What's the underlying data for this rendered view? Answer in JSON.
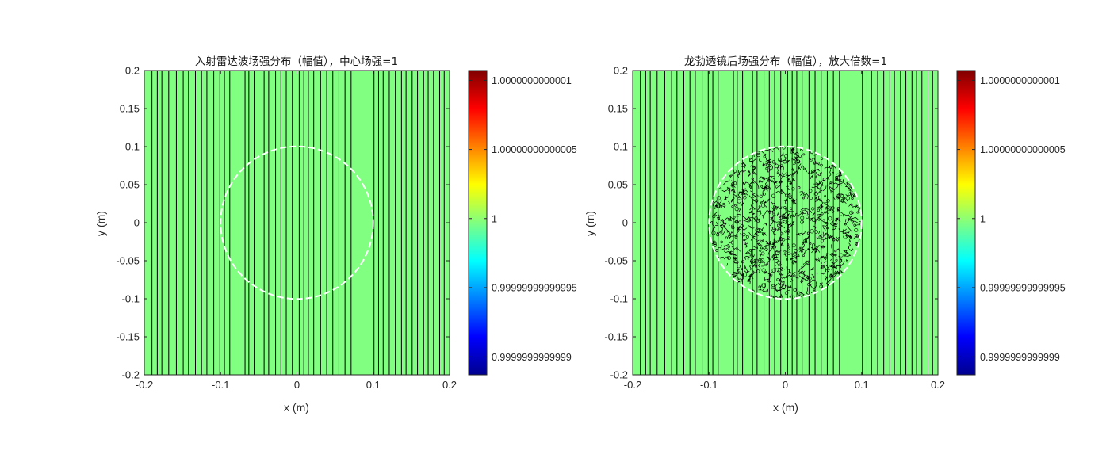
{
  "chart_data": [
    {
      "type": "heatmap",
      "title": "入射雷达波场强分布（幅值），中心场强=1",
      "xlabel": "x (m)",
      "ylabel": "y (m)",
      "xlim": [
        -0.2,
        0.2
      ],
      "ylim": [
        -0.2,
        0.2
      ],
      "xticks": [
        "-0.2",
        "-0.1",
        "0",
        "0.1",
        "0.2"
      ],
      "yticks": [
        "0.2",
        "0.15",
        "0.1",
        "0.05",
        "0",
        "-0.05",
        "-0.1",
        "-0.15",
        "-0.2"
      ],
      "field_value": 1,
      "contour_x": [
        -0.19,
        -0.183,
        -0.177,
        -0.168,
        -0.158,
        -0.149,
        -0.142,
        -0.133,
        -0.125,
        -0.118,
        -0.109,
        -0.101,
        -0.095,
        -0.088,
        -0.068,
        -0.063,
        -0.056,
        -0.043,
        -0.037,
        -0.028,
        -0.021,
        -0.014,
        -0.006,
        0.003,
        0.009,
        0.015,
        0.022,
        0.031,
        0.039,
        0.047,
        0.055,
        0.063,
        0.071,
        0.101,
        0.107,
        0.113,
        0.121,
        0.129,
        0.137,
        0.143,
        0.151,
        0.158,
        0.166,
        0.172,
        0.179,
        0.187,
        0.193
      ],
      "circle": {
        "center": [
          0,
          0
        ],
        "radius": 0.1,
        "style": "white dashed"
      },
      "colorbar": {
        "colormap": "jet",
        "ticks": [
          {
            "value": 1.0000000000001,
            "label": "1.0000000000001"
          },
          {
            "value": 1.00000000000005,
            "label": "1.00000000000005"
          },
          {
            "value": 1,
            "label": "1"
          },
          {
            "value": 0.99999999999995,
            "label": "0.99999999999995"
          },
          {
            "value": 0.9999999999999,
            "label": "0.9999999999999"
          }
        ]
      }
    },
    {
      "type": "heatmap",
      "title": "龙勃透镜后场强分布（幅值），放大倍数=1",
      "xlabel": "x (m)",
      "ylabel": "y (m)",
      "xlim": [
        -0.2,
        0.2
      ],
      "ylim": [
        -0.2,
        0.2
      ],
      "xticks": [
        "-0.2",
        "-0.1",
        "0",
        "0.1",
        "0.2"
      ],
      "yticks": [
        "0.2",
        "0.15",
        "0.1",
        "0.05",
        "0",
        "-0.05",
        "-0.1",
        "-0.15",
        "-0.2"
      ],
      "field_value": 1,
      "contour_x": [
        -0.19,
        -0.183,
        -0.177,
        -0.168,
        -0.158,
        -0.149,
        -0.142,
        -0.133,
        -0.125,
        -0.118,
        -0.109,
        -0.101,
        -0.095,
        -0.088,
        -0.068,
        -0.063,
        -0.056,
        -0.043,
        -0.037,
        -0.028,
        -0.021,
        -0.014,
        -0.006,
        0.003,
        0.009,
        0.015,
        0.022,
        0.031,
        0.039,
        0.047,
        0.055,
        0.063,
        0.071,
        0.101,
        0.107,
        0.113,
        0.121,
        0.129,
        0.137,
        0.143,
        0.151,
        0.158,
        0.166,
        0.172,
        0.179,
        0.187,
        0.193
      ],
      "circle": {
        "center": [
          0,
          0
        ],
        "radius": 0.1,
        "style": "white dashed",
        "interior": "noisy contours"
      },
      "colorbar": {
        "colormap": "jet",
        "ticks": [
          {
            "value": 1.0000000000001,
            "label": "1.0000000000001"
          },
          {
            "value": 1.00000000000005,
            "label": "1.00000000000005"
          },
          {
            "value": 1,
            "label": "1"
          },
          {
            "value": 0.99999999999995,
            "label": "0.99999999999995"
          },
          {
            "value": 0.9999999999999,
            "label": "0.9999999999999"
          }
        ]
      }
    }
  ],
  "colors": {
    "field": "#80ff80",
    "contour": "#000000",
    "circle": "#ffffff",
    "jet": [
      "#00008f",
      "#0000ff",
      "#0080ff",
      "#00ffff",
      "#80ff80",
      "#ffff00",
      "#ff8000",
      "#ff0000",
      "#800000"
    ]
  }
}
